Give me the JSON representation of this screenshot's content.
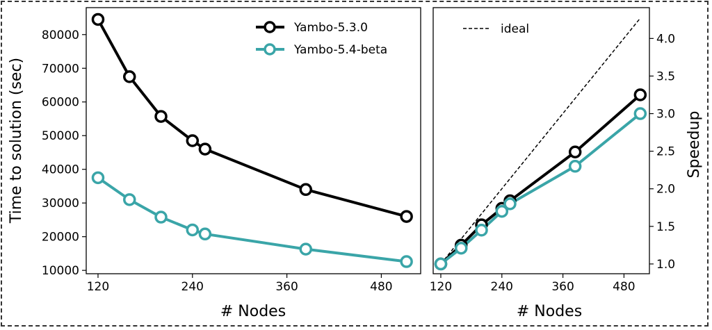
{
  "chart_data": [
    {
      "type": "line",
      "xlabel": "# Nodes",
      "ylabel": "Time to solution (sec)",
      "xticks": [
        120,
        240,
        360,
        480
      ],
      "xlim": [
        105,
        530
      ],
      "yticks": [
        10000,
        20000,
        30000,
        40000,
        50000,
        60000,
        70000,
        80000
      ],
      "ylim": [
        9000,
        88000
      ],
      "legend_position": "top-right",
      "series": [
        {
          "name": "Yambo-5.3.0",
          "color": "#000000",
          "x": [
            120,
            160,
            200,
            240,
            256,
            384,
            512
          ],
          "y": [
            84500,
            67500,
            55700,
            48500,
            46000,
            34000,
            26000
          ]
        },
        {
          "name": "Yambo-5.4-beta",
          "color": "#3aa5a8",
          "x": [
            120,
            160,
            200,
            240,
            256,
            384,
            512
          ],
          "y": [
            37500,
            31000,
            25800,
            22000,
            20800,
            16300,
            12600
          ]
        }
      ]
    },
    {
      "type": "line",
      "xlabel": "# Nodes",
      "ylabel": "Speedup",
      "xticks": [
        120,
        240,
        360,
        480
      ],
      "xlim": [
        105,
        530
      ],
      "yticks": [
        "1.0",
        "1.5",
        "2.0",
        "2.5",
        "3.0",
        "3.5",
        "4.0"
      ],
      "ylim": [
        0.87,
        4.41
      ],
      "legend_position": "top-left",
      "ideal": {
        "name": "ideal",
        "style": "dashed",
        "x": [
          120,
          512
        ],
        "y": [
          1.0,
          4.27
        ]
      },
      "series": [
        {
          "name": "Yambo-5.3.0",
          "color": "#000000",
          "x": [
            120,
            160,
            200,
            240,
            256,
            384,
            512
          ],
          "y": [
            1.0,
            1.25,
            1.52,
            1.74,
            1.84,
            2.49,
            3.25
          ]
        },
        {
          "name": "Yambo-5.4-beta",
          "color": "#3aa5a8",
          "x": [
            120,
            160,
            200,
            240,
            256,
            384,
            512
          ],
          "y": [
            1.0,
            1.21,
            1.45,
            1.7,
            1.8,
            2.3,
            3.0
          ]
        }
      ]
    }
  ]
}
